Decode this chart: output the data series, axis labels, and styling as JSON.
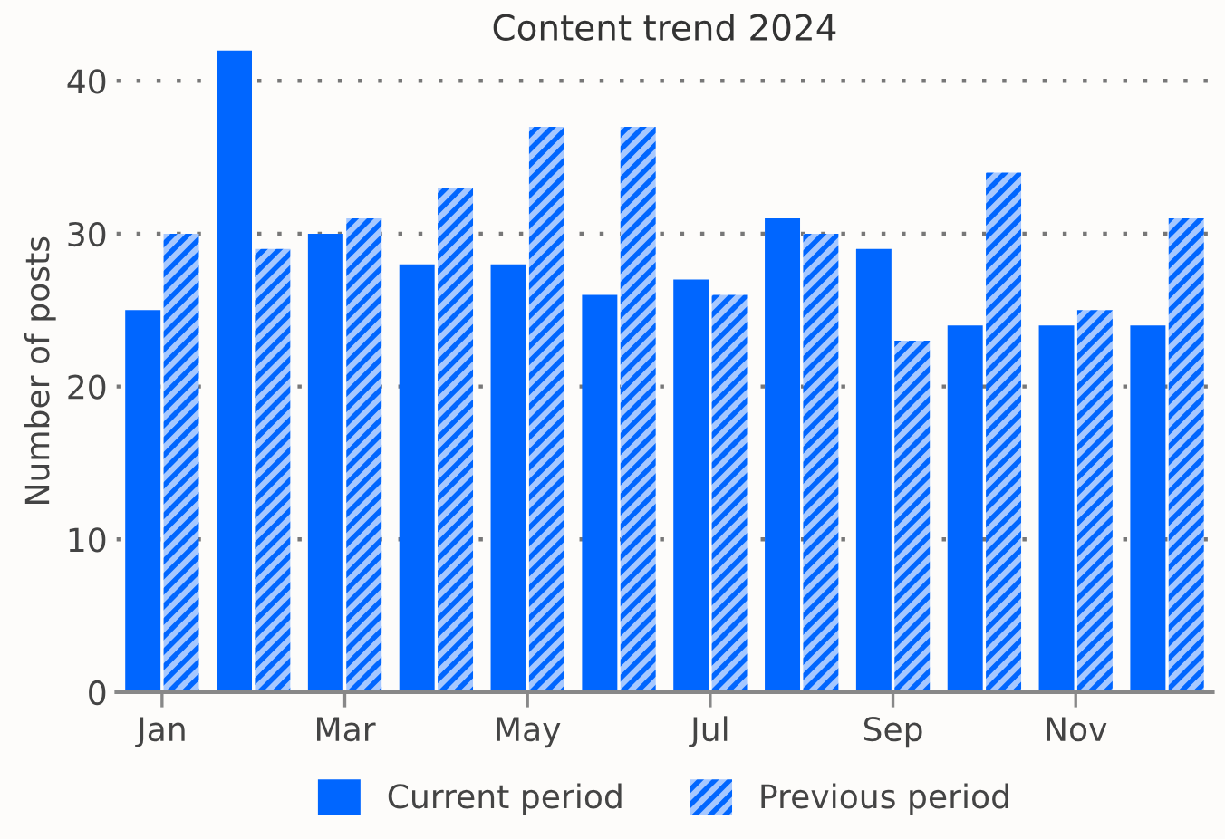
{
  "chart_data": {
    "type": "bar",
    "title": "Content trend 2024",
    "ylabel": "Number of posts",
    "categories": [
      "Jan",
      null,
      "Mar",
      null,
      "May",
      null,
      "Jul",
      null,
      "Sep",
      null,
      "Nov",
      null
    ],
    "series": [
      {
        "name": "Current period",
        "color": "#0066ff",
        "values": [
          25,
          42,
          30,
          28,
          28,
          26,
          27,
          31,
          29,
          24,
          24,
          24
        ]
      },
      {
        "name": "Previous period",
        "color": "#0066ff",
        "values": [
          30,
          29,
          31,
          33,
          37,
          37,
          26,
          30,
          23,
          34,
          25,
          31
        ]
      }
    ],
    "ylim": [
      0,
      42
    ],
    "yticks": [
      0,
      10,
      20,
      30,
      40
    ],
    "grid": "y",
    "legend": "bottom"
  }
}
